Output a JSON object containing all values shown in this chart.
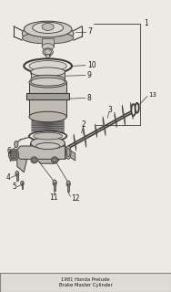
{
  "background_color": "#ede9e3",
  "outline_color": "#3a3a3a",
  "fill_light": "#d0ccc5",
  "fill_mid": "#b0aca5",
  "fill_dark": "#888480",
  "label_color": "#1a1a1a",
  "label_fs": 5.5,
  "fig_w": 1.88,
  "fig_h": 3.2,
  "dpi": 100
}
